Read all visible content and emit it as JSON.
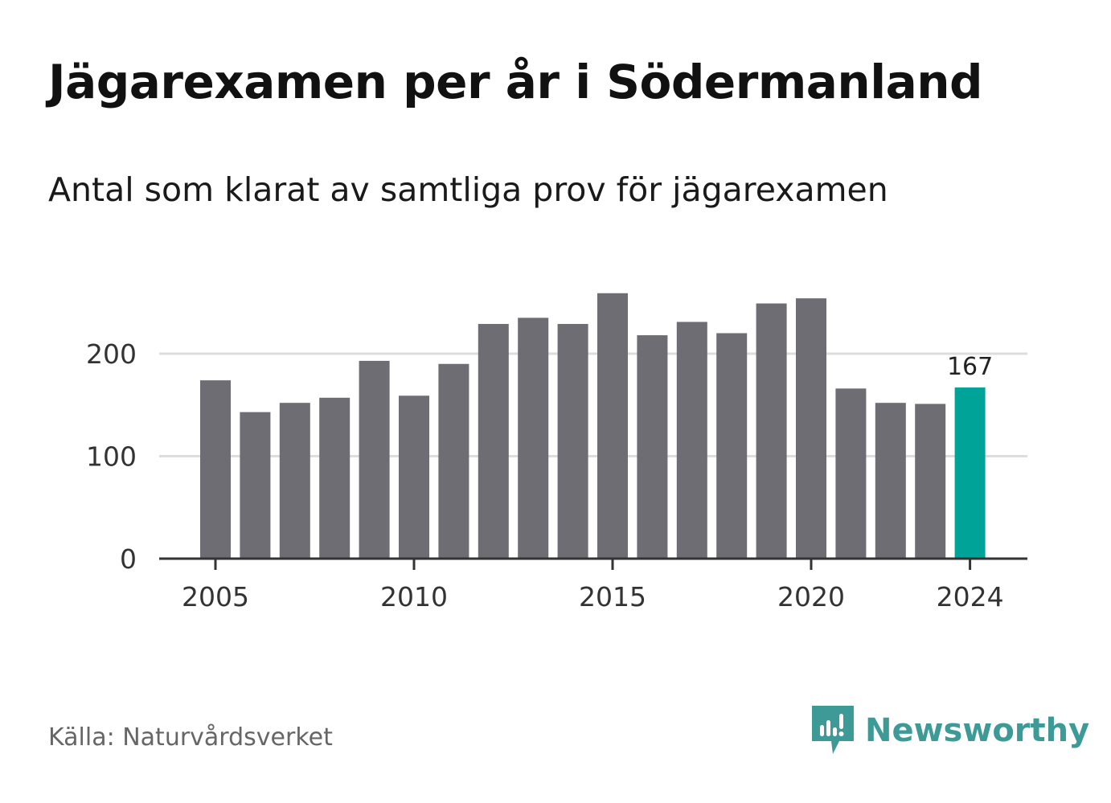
{
  "header": {
    "title": "Jägarexamen per år i Södermanland",
    "subtitle": "Antal som klarat av samtliga prov för jägarexamen"
  },
  "footer": {
    "source": "Källa: Naturvårdsverket",
    "brand": "Newsworthy",
    "brand_icon": "newsworthy-logo-icon"
  },
  "colors": {
    "bar": "#6e6d73",
    "highlight": "#00a398",
    "grid": "#dddddd",
    "axis": "#333333",
    "brand": "#3e9a96"
  },
  "chart_data": {
    "type": "bar",
    "x": [
      2005,
      2006,
      2007,
      2008,
      2009,
      2010,
      2011,
      2012,
      2013,
      2014,
      2015,
      2016,
      2017,
      2018,
      2019,
      2020,
      2021,
      2022,
      2023,
      2024
    ],
    "values": [
      174,
      143,
      152,
      157,
      193,
      159,
      190,
      229,
      235,
      229,
      259,
      218,
      231,
      220,
      249,
      254,
      166,
      152,
      151,
      167
    ],
    "highlight_x": 2024,
    "highlight_label": "167",
    "x_ticks": [
      2005,
      2010,
      2015,
      2020,
      2024
    ],
    "y_ticks": [
      0,
      100,
      200
    ],
    "ylim": [
      0,
      270
    ],
    "grid": "horizontal"
  }
}
